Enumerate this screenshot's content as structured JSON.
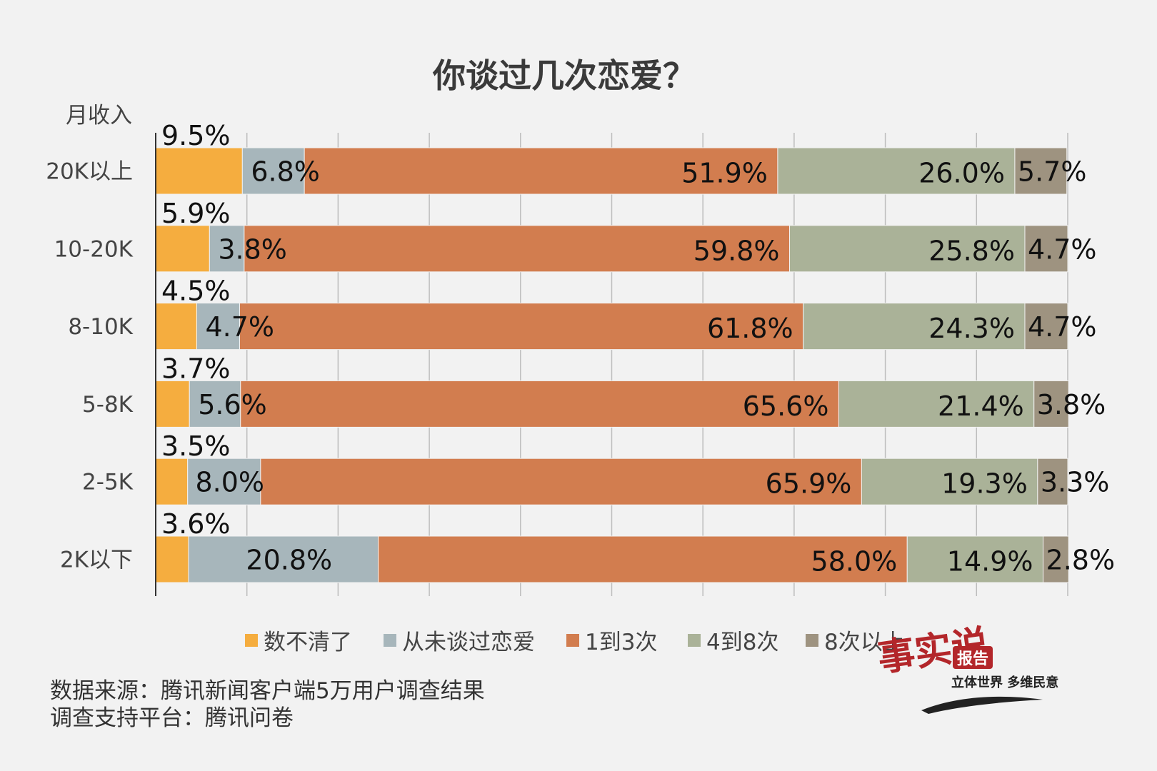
{
  "chart_data": {
    "type": "bar",
    "orientation": "horizontal-stacked-100",
    "title": "你谈过几次恋爱？",
    "ylabel": "月收入",
    "xlim": [
      0,
      100
    ],
    "grid": true,
    "legend_position": "bottom",
    "categories": [
      "20K以上",
      "10-20K",
      "8-10K",
      "5-8K",
      "2-5K",
      "2K以下"
    ],
    "series": [
      {
        "name": "数不清了",
        "color": "#f5ad3f",
        "values": [
          9.5,
          5.9,
          4.5,
          3.7,
          3.5,
          3.6
        ],
        "labels": [
          "9.5%",
          "5.9%",
          "4.5%",
          "3.7%",
          "3.5%",
          "3.6%"
        ]
      },
      {
        "name": "从未谈过恋爱",
        "color": "#a7b6bb",
        "values": [
          6.8,
          3.8,
          4.7,
          5.6,
          8.0,
          20.8
        ],
        "labels": [
          "6.8%",
          "3.8%",
          "4.7%",
          "5.6%",
          "8.0%",
          "20.8%"
        ]
      },
      {
        "name": "1到3次",
        "color": "#d27d4f",
        "values": [
          51.9,
          59.8,
          61.8,
          65.6,
          65.9,
          58.0
        ],
        "labels": [
          "51.9%",
          "59.8%",
          "61.8%",
          "65.6%",
          "65.9%",
          "58.0%"
        ]
      },
      {
        "name": "4到8次",
        "color": "#aab298",
        "values": [
          26.0,
          25.8,
          24.3,
          21.4,
          19.3,
          14.9
        ],
        "labels": [
          "26.0%",
          "25.8%",
          "24.3%",
          "21.4%",
          "19.3%",
          "14.9%"
        ]
      },
      {
        "name": "8次以上",
        "color": "#9e9380",
        "values": [
          5.7,
          4.7,
          4.7,
          3.8,
          3.3,
          2.8
        ],
        "labels": [
          "5.7%",
          "4.7%",
          "4.7%",
          "3.8%",
          "3.3%",
          "2.8%"
        ]
      }
    ]
  },
  "source": {
    "line1": "数据来源：腾讯新闻客户端5万用户调查结果",
    "line2": "调查支持平台：腾讯问卷"
  },
  "brand": {
    "name": "事实说",
    "badge": "报告",
    "slogan": "立体世界 多维民意"
  },
  "colors": {
    "background": "#f2f2f2",
    "gridline": "#bdbdbd",
    "axis": "#333333",
    "brand_red": "#b3262a"
  }
}
